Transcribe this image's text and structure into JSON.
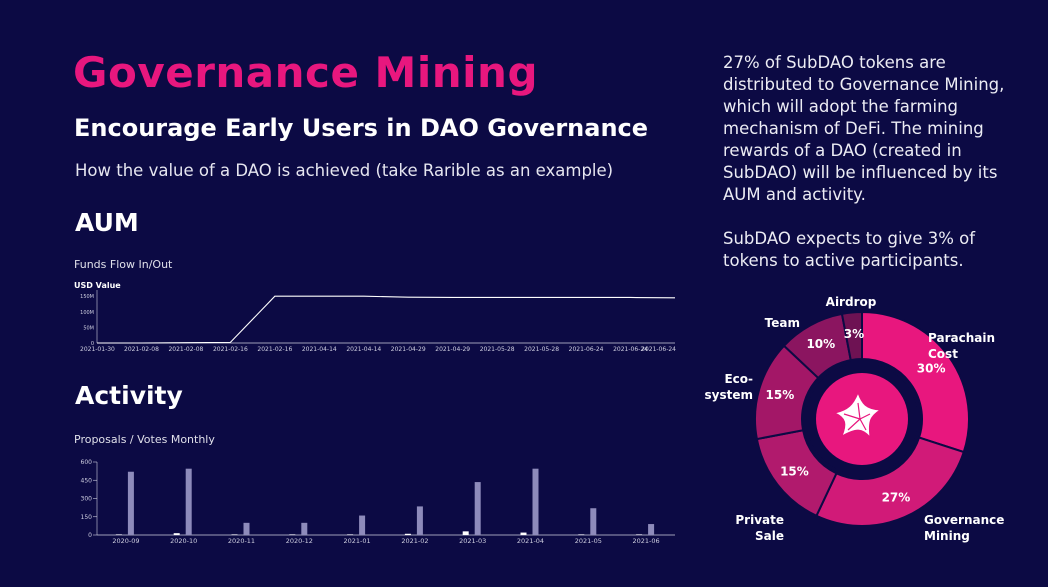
{
  "header": {
    "title": "Governance Mining",
    "subtitle": "Encourage Early Users in DAO Governance",
    "caption": "How the value of a DAO is achieved (take Rarible as an example)"
  },
  "aum": {
    "heading": "AUM",
    "chart_title": "Funds Flow In/Out"
  },
  "activity": {
    "heading": "Activity",
    "chart_title": "Proposals / Votes Monthly"
  },
  "right_text": {
    "paragraph1": "27% of SubDAO tokens are distributed to Governance Mining, which will adopt the farming mechanism of DeFi. The mining rewards of a DAO (created in SubDAO) will be influenced by its AUM and activity.",
    "paragraph2": "SubDAO expects to give 3% of tokens to active participants."
  },
  "colors": {
    "background": "#0c0a44",
    "accent": "#e8177e"
  },
  "logo_icon": "starfish-icon",
  "chart_data": [
    {
      "type": "line",
      "title": "Funds Flow In/Out",
      "ylabel": "USD Value",
      "y_tick_labels": [
        "150M",
        "100M",
        "50M",
        "0"
      ],
      "y_ticks": [
        150,
        100,
        50,
        0
      ],
      "ylim": [
        0,
        170
      ],
      "x_tick_labels": [
        "2021-01-30",
        "2021-02-08",
        "2021-02-08",
        "2021-02-16",
        "2021-02-16",
        "2021-04-14",
        "2021-04-14",
        "2021-04-29",
        "2021-04-29",
        "2021-05-28",
        "2021-05-28",
        "2021-06-24",
        "2021-06-24",
        "2021-06-24"
      ],
      "series": [
        {
          "values": [
            0,
            0,
            1,
            2,
            150,
            150,
            150,
            147,
            146,
            146,
            146,
            146,
            146,
            145
          ]
        }
      ],
      "grid": false
    },
    {
      "type": "bar",
      "title": "Proposals / Votes Monthly",
      "categories": [
        "2020-09",
        "2020-10",
        "2020-11",
        "2020-12",
        "2021-01",
        "2021-02",
        "2021-03",
        "2021-04",
        "2021-05",
        "2021-06"
      ],
      "y_tick_labels": [
        "600",
        "450",
        "300",
        "150",
        "0"
      ],
      "y_ticks": [
        600,
        450,
        300,
        150,
        0
      ],
      "ylim": [
        0,
        600
      ],
      "series": [
        {
          "color": "#ffffff",
          "values": [
            5,
            15,
            5,
            5,
            5,
            10,
            30,
            20,
            5,
            5
          ]
        },
        {
          "color": "#8e8bbb",
          "values": [
            520,
            545,
            100,
            100,
            160,
            235,
            435,
            545,
            220,
            90
          ]
        }
      ],
      "grid": false
    },
    {
      "type": "pie",
      "categories": [
        "Parachain Cost",
        "Governance Mining",
        "Private Sale",
        "Eco-system",
        "Team",
        "Airdrop"
      ],
      "category_lines": [
        [
          "Parachain",
          "Cost"
        ],
        [
          "Governance",
          "Mining"
        ],
        [
          "Private",
          "Sale"
        ],
        [
          "Eco-",
          "system"
        ],
        [
          "Team"
        ],
        [
          "Airdrop"
        ]
      ],
      "value_labels": [
        "30%",
        "27%",
        "15%",
        "15%",
        "10%",
        "3%"
      ],
      "values": [
        30,
        27,
        15,
        15,
        10,
        3
      ],
      "colors": [
        "#e8177e",
        "#d11a78",
        "#b11a6d",
        "#a31767",
        "#8b1560",
        "#6e1253"
      ]
    }
  ]
}
